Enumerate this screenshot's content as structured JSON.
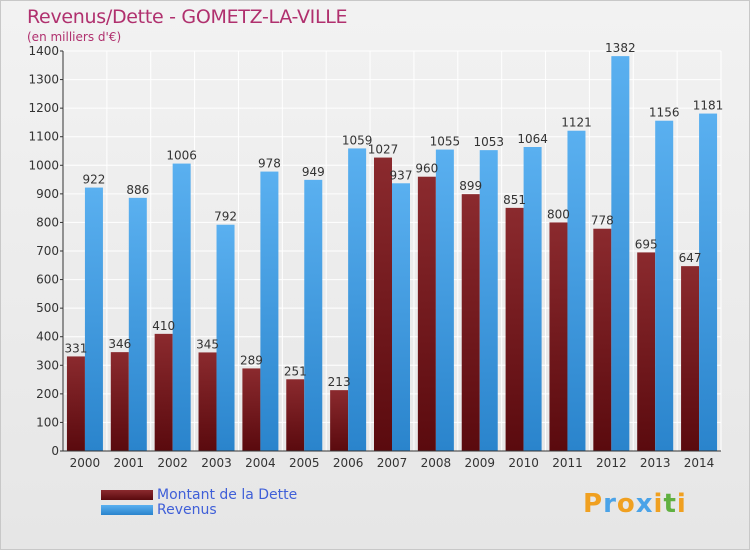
{
  "title": "Revenus/Dette - GOMETZ-LA-VILLE",
  "subtitle": "(en milliers d'€)",
  "colors": {
    "dette": "#7a1a1e",
    "revenus": "#4aa3e8",
    "title": "#b0306e",
    "legend_text": "#3f5fd8"
  },
  "legend": [
    {
      "label": "Montant de la Dette",
      "color": "#7a1a1e"
    },
    {
      "label": "Revenus",
      "color": "#4aa3e8"
    }
  ],
  "logo": {
    "letters": [
      "P",
      "r",
      "o",
      "x",
      "i",
      "t",
      "i"
    ],
    "colors": [
      "#f0a020",
      "#4aa3e8",
      "#f0a020",
      "#4aa3e8",
      "#f0a020",
      "#60b040",
      "#f0a020"
    ]
  },
  "chart_data": {
    "type": "bar",
    "categories": [
      "2000",
      "2001",
      "2002",
      "2003",
      "2004",
      "2005",
      "2006",
      "2007",
      "2008",
      "2009",
      "2010",
      "2011",
      "2012",
      "2013",
      "2014"
    ],
    "series": [
      {
        "name": "Montant de la Dette",
        "values": [
          331,
          346,
          410,
          345,
          289,
          251,
          213,
          1027,
          960,
          899,
          851,
          800,
          778,
          695,
          647
        ]
      },
      {
        "name": "Revenus",
        "values": [
          922,
          886,
          1006,
          792,
          978,
          949,
          1059,
          937,
          1055,
          1053,
          1064,
          1121,
          1382,
          1156,
          1181
        ]
      }
    ],
    "y_ticks": [
      0,
      100,
      200,
      300,
      400,
      500,
      600,
      700,
      800,
      900,
      1000,
      1100,
      1200,
      1300,
      1400
    ],
    "ylim": [
      0,
      1400
    ],
    "grid": true,
    "legend_position": "bottom-left"
  }
}
